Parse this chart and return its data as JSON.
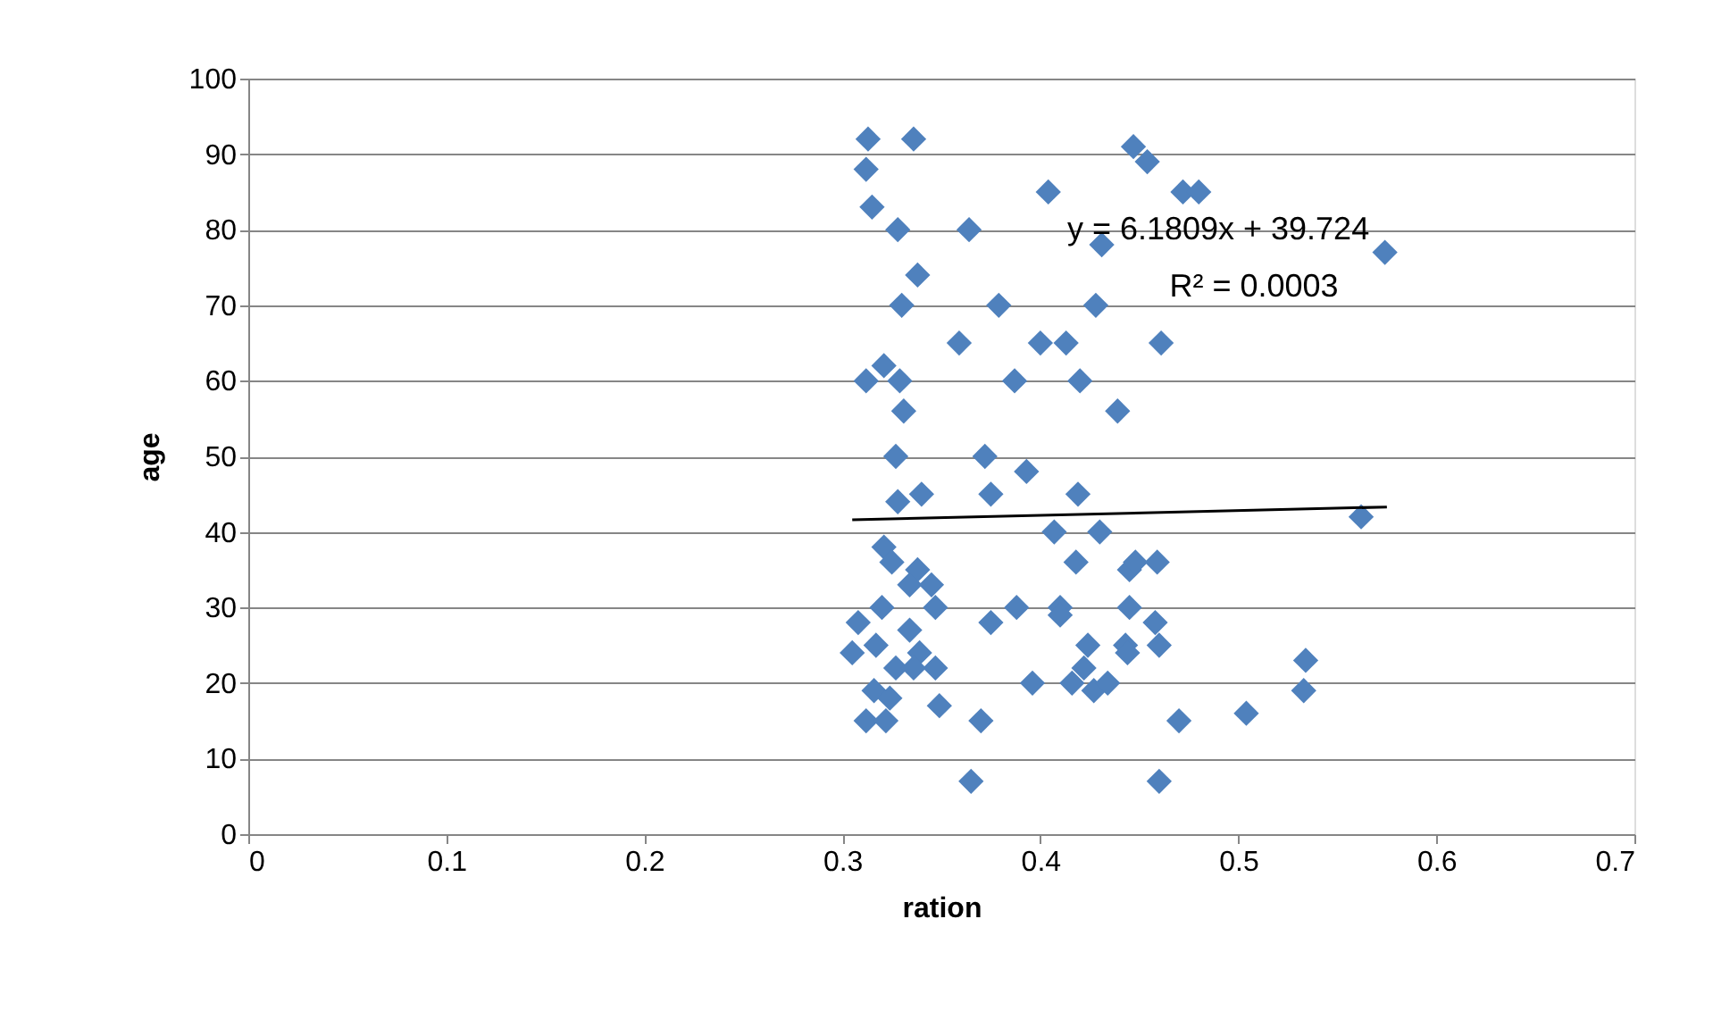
{
  "chart_data": {
    "type": "scatter",
    "xlabel": "ration",
    "ylabel": "age",
    "xlim": [
      0,
      0.7
    ],
    "xticks": [
      0,
      0.1,
      0.2,
      0.3,
      0.4,
      0.5,
      0.6,
      0.7
    ],
    "ylim": [
      0,
      100
    ],
    "yticks": [
      0,
      10,
      20,
      30,
      40,
      50,
      60,
      70,
      80,
      90,
      100
    ],
    "grid": "y",
    "annotations": [
      "y = 6.1809x + 39.724",
      "R² = 0.0003"
    ],
    "series": [
      {
        "color": "#4f81bd",
        "marker": "diamond",
        "x": [
          0.313,
          0.336,
          0.312,
          0.315,
          0.328,
          0.364,
          0.404,
          0.447,
          0.454,
          0.472,
          0.48,
          0.431,
          0.574,
          0.338,
          0.33,
          0.379,
          0.428,
          0.359,
          0.4,
          0.413,
          0.461,
          0.312,
          0.321,
          0.329,
          0.387,
          0.42,
          0.331,
          0.439,
          0.327,
          0.372,
          0.393,
          0.328,
          0.34,
          0.375,
          0.419,
          0.562,
          0.407,
          0.43,
          0.321,
          0.418,
          0.445,
          0.448,
          0.459,
          0.325,
          0.338,
          0.334,
          0.345,
          0.347,
          0.32,
          0.308,
          0.317,
          0.305,
          0.334,
          0.339,
          0.327,
          0.347,
          0.336,
          0.375,
          0.388,
          0.41,
          0.41,
          0.445,
          0.458,
          0.424,
          0.443,
          0.46,
          0.444,
          0.396,
          0.416,
          0.422,
          0.427,
          0.434,
          0.316,
          0.324,
          0.312,
          0.322,
          0.349,
          0.37,
          0.47,
          0.504,
          0.534,
          0.533,
          0.365,
          0.46
        ],
        "values": [
          92,
          92,
          88,
          83,
          80,
          80,
          85,
          91,
          89,
          85,
          85,
          78,
          77,
          74,
          70,
          70,
          70,
          65,
          65,
          65,
          65,
          60,
          62,
          60,
          60,
          60,
          56,
          56,
          50,
          50,
          48,
          44,
          45,
          45,
          45,
          42,
          40,
          40,
          38,
          36,
          35,
          36,
          36,
          36,
          35,
          33,
          33,
          30,
          30,
          28,
          25,
          24,
          27,
          24,
          22,
          22,
          22,
          28,
          30,
          30,
          29,
          30,
          28,
          25,
          25,
          25,
          24,
          20,
          20,
          22,
          19,
          20,
          19,
          18,
          15,
          15,
          17,
          15,
          15,
          16,
          23,
          19,
          7,
          7
        ]
      },
      {
        "type": "line",
        "color": "#000000",
        "line_style": "solid",
        "x": [
          0.305,
          0.575
        ],
        "values": [
          41.6,
          43.3
        ]
      }
    ]
  }
}
